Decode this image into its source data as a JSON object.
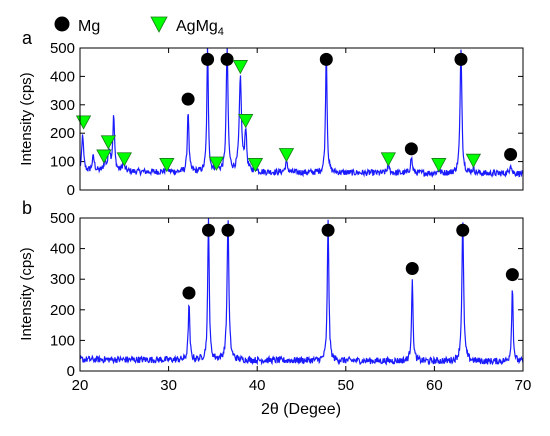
{
  "legend": [
    {
      "label_main": "Mg",
      "label_sub": "",
      "marker": "black-circle",
      "color": "#000000"
    },
    {
      "label_main": "AgMg",
      "label_sub": "4",
      "marker": "green-down-triangle",
      "color": "#00ff00"
    }
  ],
  "chart_data": [
    {
      "type": "line",
      "panel_label": "a",
      "xlabel": "",
      "ylabel": "Intensity (cps)",
      "xlim": [
        20,
        70
      ],
      "ylim": [
        0,
        500
      ],
      "xticks": [
        20,
        30,
        40,
        50,
        60,
        70
      ],
      "yticks": [
        0,
        100,
        200,
        300,
        400,
        500
      ],
      "grid": false,
      "line_color": "#1a1aff",
      "background_level": 65,
      "peaks": [
        {
          "x": 20.3,
          "y": 195,
          "w": 0.12
        },
        {
          "x": 21.5,
          "y": 115,
          "w": 0.15
        },
        {
          "x": 22.8,
          "y": 95,
          "w": 0.15
        },
        {
          "x": 23.3,
          "y": 140,
          "w": 0.15
        },
        {
          "x": 23.8,
          "y": 255,
          "w": 0.12
        },
        {
          "x": 24.9,
          "y": 95,
          "w": 0.15
        },
        {
          "x": 29.8,
          "y": 80,
          "w": 0.15
        },
        {
          "x": 32.2,
          "y": 285,
          "w": 0.1
        },
        {
          "x": 34.4,
          "y": 500,
          "w": 0.1
        },
        {
          "x": 35.4,
          "y": 90,
          "w": 0.15
        },
        {
          "x": 36.6,
          "y": 500,
          "w": 0.12
        },
        {
          "x": 38.1,
          "y": 395,
          "w": 0.15
        },
        {
          "x": 38.7,
          "y": 210,
          "w": 0.12
        },
        {
          "x": 39.8,
          "y": 85,
          "w": 0.15
        },
        {
          "x": 43.3,
          "y": 100,
          "w": 0.15
        },
        {
          "x": 47.8,
          "y": 500,
          "w": 0.1
        },
        {
          "x": 54.8,
          "y": 90,
          "w": 0.15
        },
        {
          "x": 57.4,
          "y": 120,
          "w": 0.12
        },
        {
          "x": 60.5,
          "y": 75,
          "w": 0.15
        },
        {
          "x": 63.0,
          "y": 500,
          "w": 0.12
        },
        {
          "x": 64.4,
          "y": 80,
          "w": 0.15
        },
        {
          "x": 68.6,
          "y": 100,
          "w": 0.12
        }
      ],
      "markers": [
        {
          "phase": "Mg",
          "x": 32.2,
          "y": 320
        },
        {
          "phase": "Mg",
          "x": 34.4,
          "y": 460
        },
        {
          "phase": "Mg",
          "x": 36.6,
          "y": 460
        },
        {
          "phase": "Mg",
          "x": 47.8,
          "y": 460
        },
        {
          "phase": "Mg",
          "x": 57.4,
          "y": 145
        },
        {
          "phase": "Mg",
          "x": 63.0,
          "y": 460
        },
        {
          "phase": "Mg",
          "x": 68.6,
          "y": 125
        },
        {
          "phase": "AgMg4",
          "x": 20.4,
          "y": 240
        },
        {
          "phase": "AgMg4",
          "x": 22.7,
          "y": 120
        },
        {
          "phase": "AgMg4",
          "x": 23.2,
          "y": 170
        },
        {
          "phase": "AgMg4",
          "x": 25.0,
          "y": 110
        },
        {
          "phase": "AgMg4",
          "x": 29.8,
          "y": 90
        },
        {
          "phase": "AgMg4",
          "x": 35.4,
          "y": 95
        },
        {
          "phase": "AgMg4",
          "x": 38.1,
          "y": 435
        },
        {
          "phase": "AgMg4",
          "x": 38.7,
          "y": 245
        },
        {
          "phase": "AgMg4",
          "x": 39.8,
          "y": 90
        },
        {
          "phase": "AgMg4",
          "x": 43.3,
          "y": 125
        },
        {
          "phase": "AgMg4",
          "x": 54.8,
          "y": 110
        },
        {
          "phase": "AgMg4",
          "x": 60.5,
          "y": 90
        },
        {
          "phase": "AgMg4",
          "x": 64.4,
          "y": 105
        }
      ]
    },
    {
      "type": "line",
      "panel_label": "b",
      "xlabel": "2θ (Degee)",
      "ylabel": "Intensity (cps)",
      "xlim": [
        20,
        70
      ],
      "ylim": [
        0,
        500
      ],
      "xticks": [
        20,
        30,
        40,
        50,
        60,
        70
      ],
      "yticks": [
        0,
        100,
        200,
        300,
        400,
        500
      ],
      "grid": false,
      "line_color": "#1a1aff",
      "background_level": 38,
      "peaks": [
        {
          "x": 32.3,
          "y": 220,
          "w": 0.1
        },
        {
          "x": 34.5,
          "y": 500,
          "w": 0.1
        },
        {
          "x": 36.7,
          "y": 500,
          "w": 0.12
        },
        {
          "x": 48.0,
          "y": 500,
          "w": 0.1
        },
        {
          "x": 57.5,
          "y": 310,
          "w": 0.1
        },
        {
          "x": 63.2,
          "y": 500,
          "w": 0.12
        },
        {
          "x": 68.8,
          "y": 280,
          "w": 0.1
        }
      ],
      "markers": [
        {
          "phase": "Mg",
          "x": 32.3,
          "y": 255
        },
        {
          "phase": "Mg",
          "x": 34.5,
          "y": 460
        },
        {
          "phase": "Mg",
          "x": 36.7,
          "y": 460
        },
        {
          "phase": "Mg",
          "x": 48.0,
          "y": 460
        },
        {
          "phase": "Mg",
          "x": 57.5,
          "y": 335
        },
        {
          "phase": "Mg",
          "x": 63.2,
          "y": 460
        },
        {
          "phase": "Mg",
          "x": 68.8,
          "y": 315
        }
      ]
    }
  ]
}
